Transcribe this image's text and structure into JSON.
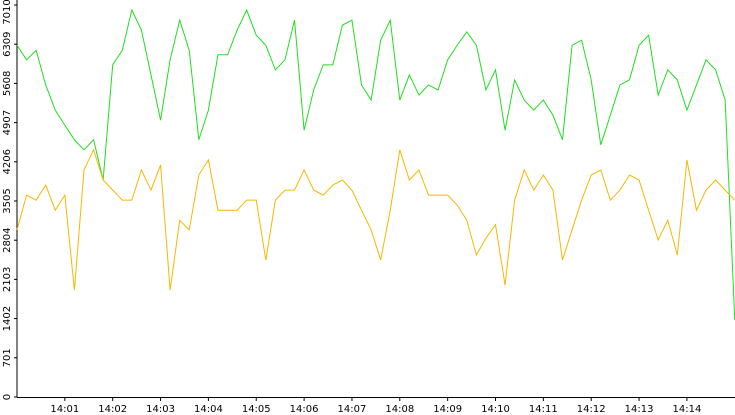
{
  "chart_data": {
    "type": "line",
    "x": [
      0,
      0.2,
      0.4,
      0.6,
      0.8,
      1,
      1.2,
      1.4,
      1.6,
      1.8,
      2,
      2.2,
      2.4,
      2.6,
      2.8,
      3,
      3.2,
      3.4,
      3.6,
      3.8,
      4,
      4.2,
      4.4,
      4.6,
      4.8,
      5,
      5.2,
      5.4,
      5.6,
      5.8,
      6,
      6.2,
      6.4,
      6.6,
      6.8,
      7,
      7.2,
      7.4,
      7.6,
      7.8,
      8,
      8.2,
      8.4,
      8.6,
      8.8,
      9,
      9.2,
      9.4,
      9.6,
      9.8,
      10,
      10.2,
      10.4,
      10.6,
      10.8,
      11,
      11.2,
      11.4,
      11.6,
      11.8,
      12,
      12.2,
      12.4,
      12.6,
      12.8,
      13,
      13.2,
      13.4,
      13.6,
      13.8,
      14,
      14.2,
      14.4,
      14.6,
      14.8,
      15
    ],
    "series": [
      {
        "color": "#22dd22",
        "values": [
          6290,
          6030,
          6200,
          5580,
          5130,
          4860,
          4600,
          4420,
          4600,
          3880,
          5940,
          6200,
          6920,
          6560,
          5760,
          4950,
          6030,
          6740,
          6200,
          4600,
          5130,
          6120,
          6120,
          6560,
          6920,
          6470,
          6290,
          5850,
          6030,
          6740,
          4770,
          5490,
          5940,
          5940,
          6650,
          6740,
          5580,
          5310,
          6380,
          6740,
          5310,
          5760,
          5400,
          5580,
          5490,
          6030,
          6290,
          6530,
          6290,
          5490,
          5850,
          4770,
          5670,
          5310,
          5130,
          5310,
          5040,
          4600,
          6290,
          6380,
          5670,
          4510,
          5040,
          5580,
          5670,
          6290,
          6470,
          5400,
          5850,
          5670,
          5130,
          5580,
          6030,
          5850,
          5310,
          1380
        ]
      },
      {
        "color": "#f5b800",
        "values": [
          2990,
          3610,
          3520,
          3790,
          3340,
          3610,
          1910,
          4060,
          4420,
          3880,
          3700,
          3520,
          3520,
          4060,
          3700,
          4150,
          1910,
          3160,
          2990,
          3970,
          4240,
          3340,
          3340,
          3340,
          3520,
          3520,
          2450,
          3520,
          3700,
          3700,
          4060,
          3700,
          3610,
          3790,
          3880,
          3700,
          3340,
          2990,
          2450,
          3340,
          4420,
          3880,
          4060,
          3610,
          3610,
          3610,
          3430,
          3160,
          2540,
          2840,
          3080,
          2000,
          3520,
          4060,
          3700,
          3970,
          3700,
          2450,
          2990,
          3520,
          3970,
          4060,
          3520,
          3700,
          3970,
          3880,
          3340,
          2810,
          3160,
          2540,
          4240,
          3340,
          3700,
          3880,
          3700,
          3520
        ]
      }
    ],
    "xlim": [
      0,
      15
    ],
    "xticks": [
      {
        "value": 1,
        "label": "14:01"
      },
      {
        "value": 2,
        "label": "14:02"
      },
      {
        "value": 3,
        "label": "14:03"
      },
      {
        "value": 4,
        "label": "14:04"
      },
      {
        "value": 5,
        "label": "14:05"
      },
      {
        "value": 6,
        "label": "14:06"
      },
      {
        "value": 7,
        "label": "14:07"
      },
      {
        "value": 8,
        "label": "14:08"
      },
      {
        "value": 9,
        "label": "14:09"
      },
      {
        "value": 10,
        "label": "14:10"
      },
      {
        "value": 11,
        "label": "14:11"
      },
      {
        "value": 12,
        "label": "14:12"
      },
      {
        "value": 13,
        "label": "14:13"
      },
      {
        "value": 14,
        "label": "14:14"
      }
    ],
    "ylim": [
      0,
      7010
    ],
    "yticks": [
      0,
      701,
      1402,
      2103,
      2804,
      3505,
      4206,
      4907,
      5608,
      6309,
      7010
    ]
  }
}
